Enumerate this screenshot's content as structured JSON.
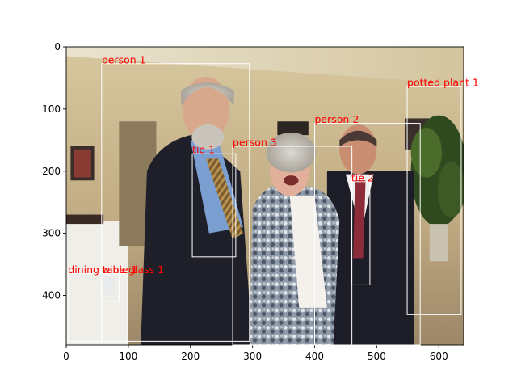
{
  "image": {
    "x_range": [
      0,
      640
    ],
    "y_range": [
      0,
      480
    ],
    "x_ticks": [
      {
        "value": 0,
        "label": "0"
      },
      {
        "value": 100,
        "label": "100"
      },
      {
        "value": 200,
        "label": "200"
      },
      {
        "value": 300,
        "label": "300"
      },
      {
        "value": 400,
        "label": "400"
      },
      {
        "value": 500,
        "label": "500"
      },
      {
        "value": 600,
        "label": "600"
      }
    ],
    "y_ticks": [
      {
        "value": 0,
        "label": "0"
      },
      {
        "value": 100,
        "label": "100"
      },
      {
        "value": 200,
        "label": "200"
      },
      {
        "value": 300,
        "label": "300"
      },
      {
        "value": 400,
        "label": "400"
      }
    ]
  },
  "style": {
    "box_color": "#ffffff",
    "label_color": "#ff0000"
  },
  "detections": [
    {
      "label": "person 1",
      "x0": 57,
      "y0": 27,
      "x1": 295,
      "y1": 474
    },
    {
      "label": "person 2",
      "x0": 400,
      "y0": 123,
      "x1": 570,
      "y1": 480
    },
    {
      "label": "person 3",
      "x0": 268,
      "y0": 160,
      "x1": 460,
      "y1": 480
    },
    {
      "label": "potted plant 1",
      "x0": 549,
      "y0": 64,
      "x1": 636,
      "y1": 431
    },
    {
      "label": "tie 1",
      "x0": 203,
      "y0": 172,
      "x1": 273,
      "y1": 338
    },
    {
      "label": "tie 2",
      "x0": 459,
      "y0": 217,
      "x1": 489,
      "y1": 383
    },
    {
      "label": "dining table 1",
      "x0": 3,
      "y0": 365,
      "x1": 99,
      "y1": 474
    },
    {
      "label": "wine glass 1",
      "x0": 57,
      "y0": 365,
      "x1": 85,
      "y1": 410
    }
  ]
}
